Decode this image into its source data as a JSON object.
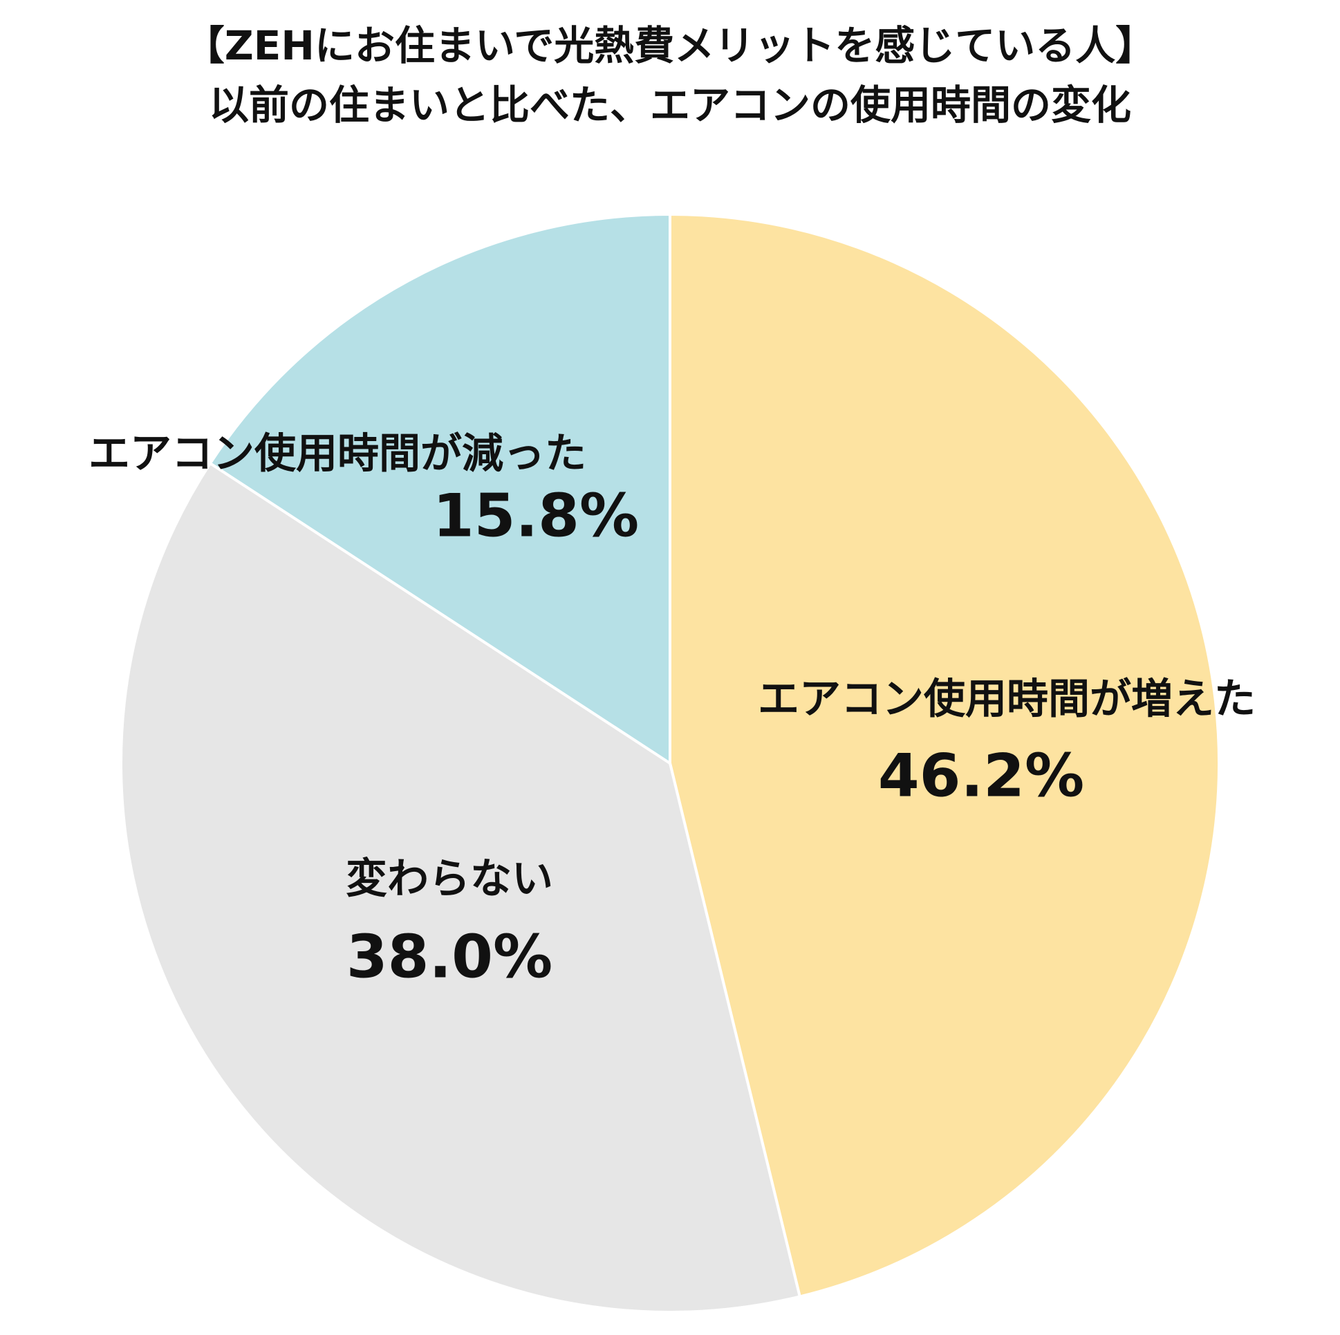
{
  "chart_data": {
    "type": "pie",
    "title": "【ZEHにお住まいで光熱費メリットを感じている人】",
    "subtitle": "以前の住まいと比べた、エアコンの使用時間の変化",
    "categories": [
      "エアコン使用時間が増えた",
      "変わらない",
      "エアコン使用時間が減った"
    ],
    "values": [
      46.2,
      38.0,
      15.8
    ],
    "value_labels": [
      "46.2%",
      "38.0%",
      "15.8%"
    ],
    "colors": [
      "#fde3a1",
      "#e6e6e6",
      "#b6e0e6"
    ]
  }
}
